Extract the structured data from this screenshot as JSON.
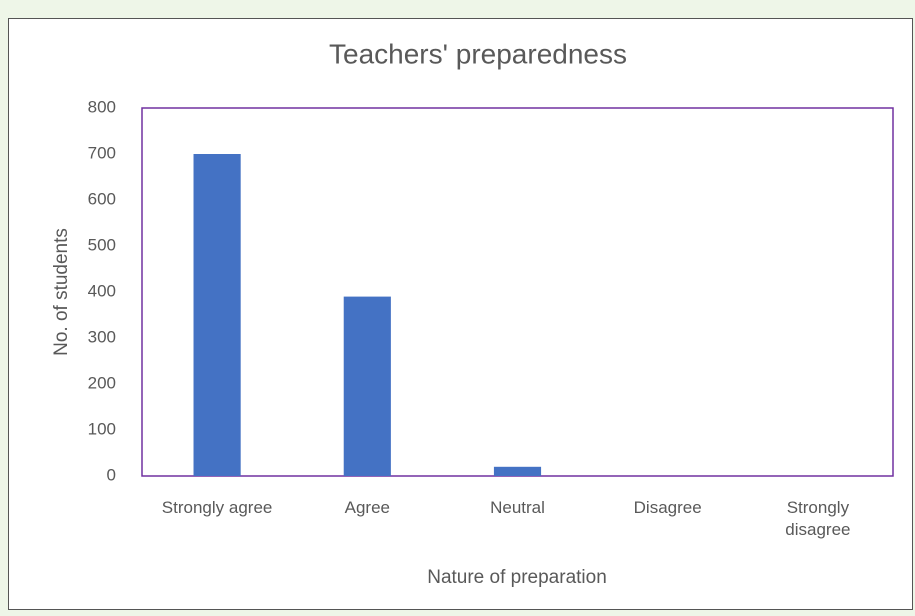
{
  "chart_data": {
    "type": "bar",
    "title": "Teachers' preparedness",
    "x_label": "Nature of preparation",
    "y_label": "No. of students",
    "categories": [
      "Strongly agree",
      "Agree",
      "Neutral",
      "Disagree",
      "Strongly disagree"
    ],
    "values": [
      700,
      390,
      20,
      0,
      0
    ],
    "color": "#4472c4",
    "ylim": [
      0,
      800
    ],
    "yticks": [
      0,
      100,
      200,
      300,
      400,
      500,
      600,
      700,
      800
    ],
    "grid": false
  }
}
